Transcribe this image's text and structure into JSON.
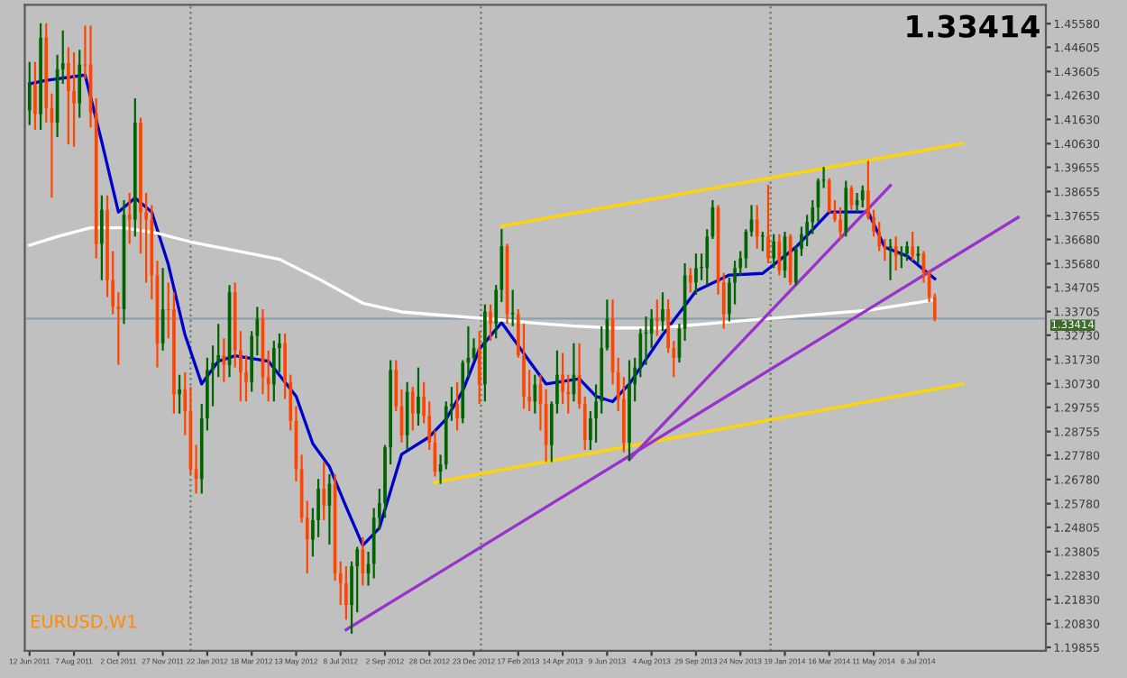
{
  "chart_data": {
    "type": "candlestick",
    "annotations": [
      "1.33414",
      "EURUSD,W1"
    ],
    "colors": [
      "#006400",
      "#ff4500",
      "#006400",
      "#ff4500",
      "#ff4500",
      "#006400",
      "#006400",
      "#ff4500",
      "#ff4500",
      "#006400",
      "#ff4500",
      "#ff4500",
      "#ff4500",
      "#006400",
      "#ff4500",
      "#ff4500",
      "#ff4500",
      "#006400",
      "#ff4500",
      "#006400",
      "#ff4500",
      "#ff4500",
      "#ff4500",
      "#ff4500",
      "#006400",
      "#ff4500",
      "#ff4500",
      "#006400",
      "#ff4500",
      "#ff4500",
      "#ff4500",
      "#006400",
      "#006400",
      "#006400",
      "#006400",
      "#ff4500",
      "#006400",
      "#ff4500",
      "#ff4500",
      "#ff4500",
      "#006400",
      "#006400",
      "#ff4500",
      "#ff4500",
      "#006400",
      "#006400",
      "#ff4500",
      "#ff4500",
      "#ff4500",
      "#ff4500",
      "#ff4500",
      "#006400",
      "#006400",
      "#ff4500",
      "#006400",
      "#ff4500",
      "#ff4500",
      "#ff4500",
      "#006400",
      "#006400",
      "#ff4500",
      "#006400",
      "#006400",
      "#006400",
      "#006400",
      "#006400",
      "#ff4500",
      "#ff4500",
      "#006400",
      "#ff4500",
      "#006400",
      "#ff4500",
      "#ff4500",
      "#ff4500",
      "#006400",
      "#006400",
      "#006400",
      "#ff4500",
      "#006400",
      "#006400",
      "#006400",
      "#ff4500",
      "#006400",
      "#ff4500",
      "#006400",
      "#006400",
      "#ff4500",
      "#006400",
      "#ff4500",
      "#ff4500",
      "#ff4500",
      "#006400",
      "#ff4500",
      "#ff4500",
      "#006400",
      "#006400",
      "#ff4500",
      "#ff4500",
      "#006400",
      "#ff4500",
      "#ff4500",
      "#006400",
      "#006400",
      "#006400",
      "#006400",
      "#ff4500",
      "#ff4500",
      "#ff4500",
      "#006400",
      "#006400",
      "#006400",
      "#006400",
      "#006400",
      "#ff4500",
      "#006400",
      "#ff4500",
      "#ff4500",
      "#006400",
      "#006400",
      "#ff4500",
      "#006400",
      "#006400",
      "#006400",
      "#006400",
      "#ff4500",
      "#ff4500",
      "#006400",
      "#006400",
      "#006400",
      "#006400",
      "#006400",
      "#ff4500",
      "#006400",
      "#ff4500",
      "#006400",
      "#ff4500",
      "#006400",
      "#ff4500",
      "#006400",
      "#006400",
      "#006400",
      "#006400",
      "#006400",
      "#006400",
      "#ff4500",
      "#ff4500",
      "#ff4500",
      "#006400",
      "#ff4500",
      "#006400",
      "#006400",
      "#ff4500",
      "#ff4500",
      "#ff4500",
      "#ff4500",
      "#006400",
      "#ff4500",
      "#006400",
      "#006400",
      "#ff4500",
      "#006400",
      "#ff4500",
      "#ff4500",
      "#ff4500"
    ],
    "x": [
      "2011-06-12",
      "2011-06-19",
      "2011-06-26",
      "2011-07-03",
      "2011-07-10",
      "2011-07-17",
      "2011-07-24",
      "2011-07-31",
      "2011-08-07",
      "2011-08-14",
      "2011-08-21",
      "2011-08-28",
      "2011-09-04",
      "2011-09-11",
      "2011-09-18",
      "2011-09-25",
      "2011-10-02",
      "2011-10-09",
      "2011-10-16",
      "2011-10-23",
      "2011-10-30",
      "2011-11-06",
      "2011-11-13",
      "2011-11-20",
      "2011-11-27",
      "2011-12-04",
      "2011-12-11",
      "2011-12-18",
      "2011-12-25",
      "2012-01-01",
      "2012-01-08",
      "2012-01-15",
      "2012-01-22",
      "2012-01-29",
      "2012-02-05",
      "2012-02-12",
      "2012-02-19",
      "2012-02-26",
      "2012-03-04",
      "2012-03-11",
      "2012-03-18",
      "2012-03-25",
      "2012-04-01",
      "2012-04-08",
      "2012-04-15",
      "2012-04-22",
      "2012-04-29",
      "2012-05-06",
      "2012-05-13",
      "2012-05-20",
      "2012-05-27",
      "2012-06-03",
      "2012-06-10",
      "2012-06-17",
      "2012-06-24",
      "2012-07-01",
      "2012-07-08",
      "2012-07-15",
      "2012-07-22",
      "2012-07-29",
      "2012-08-05",
      "2012-08-12",
      "2012-08-19",
      "2012-08-26",
      "2012-09-02",
      "2012-09-09",
      "2012-09-16",
      "2012-09-23",
      "2012-09-30",
      "2012-10-07",
      "2012-10-14",
      "2012-10-21",
      "2012-10-28",
      "2012-11-04",
      "2012-11-11",
      "2012-11-18",
      "2012-11-25",
      "2012-12-02",
      "2012-12-09",
      "2012-12-16",
      "2012-12-23",
      "2012-12-30",
      "2013-01-06",
      "2013-01-13",
      "2013-01-20",
      "2013-01-27",
      "2013-02-03",
      "2013-02-10",
      "2013-02-17",
      "2013-02-24",
      "2013-03-03",
      "2013-03-10",
      "2013-03-17",
      "2013-03-24",
      "2013-03-31",
      "2013-04-07",
      "2013-04-14",
      "2013-04-21",
      "2013-04-28",
      "2013-05-05",
      "2013-05-12",
      "2013-05-19",
      "2013-05-26",
      "2013-06-02",
      "2013-06-09",
      "2013-06-16",
      "2013-06-23",
      "2013-06-30",
      "2013-07-07",
      "2013-07-14",
      "2013-07-21",
      "2013-07-28",
      "2013-08-04",
      "2013-08-11",
      "2013-08-18",
      "2013-08-25",
      "2013-09-01",
      "2013-09-08",
      "2013-09-15",
      "2013-09-22",
      "2013-09-29",
      "2013-10-06",
      "2013-10-13",
      "2013-10-20",
      "2013-10-27",
      "2013-11-03",
      "2013-11-10",
      "2013-11-17",
      "2013-11-24",
      "2013-12-01",
      "2013-12-08",
      "2013-12-15",
      "2013-12-22",
      "2013-12-29",
      "2014-01-05",
      "2014-01-12",
      "2014-01-19",
      "2014-01-26",
      "2014-02-02",
      "2014-02-09",
      "2014-02-16",
      "2014-02-23",
      "2014-03-02",
      "2014-03-09",
      "2014-03-16",
      "2014-03-23",
      "2014-03-30",
      "2014-04-06",
      "2014-04-13",
      "2014-04-20",
      "2014-04-27",
      "2014-05-04",
      "2014-05-11",
      "2014-05-18",
      "2014-05-25",
      "2014-06-01",
      "2014-06-08",
      "2014-06-15",
      "2014-06-22",
      "2014-06-29",
      "2014-07-06",
      "2014-07-13",
      "2014-07-20",
      "2014-07-27"
    ],
    "ohlc": [
      [
        1.42,
        1.44,
        1.414,
        1.431
      ],
      [
        1.431,
        1.44,
        1.412,
        1.4185
      ],
      [
        1.4185,
        1.456,
        1.412,
        1.45
      ],
      [
        1.45,
        1.456,
        1.415,
        1.421
      ],
      [
        1.421,
        1.427,
        1.384,
        1.415
      ],
      [
        1.415,
        1.443,
        1.409,
        1.437
      ],
      [
        1.437,
        1.453,
        1.431,
        1.4395
      ],
      [
        1.4395,
        1.446,
        1.406,
        1.428
      ],
      [
        1.428,
        1.444,
        1.405,
        1.423
      ],
      [
        1.423,
        1.445,
        1.417,
        1.439
      ],
      [
        1.439,
        1.455,
        1.433,
        1.4385
      ],
      [
        1.439,
        1.455,
        1.413,
        1.419
      ],
      [
        1.419,
        1.425,
        1.359,
        1.365
      ],
      [
        1.365,
        1.385,
        1.35,
        1.379
      ],
      [
        1.379,
        1.385,
        1.343,
        1.35
      ],
      [
        1.35,
        1.362,
        1.336,
        1.339
      ],
      [
        1.339,
        1.345,
        1.315,
        1.338
      ],
      [
        1.338,
        1.383,
        1.332,
        1.377
      ],
      [
        1.377,
        1.386,
        1.365,
        1.375
      ],
      [
        1.375,
        1.425,
        1.368,
        1.415
      ],
      [
        1.415,
        1.417,
        1.361,
        1.378
      ],
      [
        1.378,
        1.386,
        1.349,
        1.375
      ],
      [
        1.375,
        1.381,
        1.342,
        1.352
      ],
      [
        1.352,
        1.358,
        1.314,
        1.324
      ],
      [
        1.324,
        1.355,
        1.321,
        1.338
      ],
      [
        1.338,
        1.349,
        1.326,
        1.3375
      ],
      [
        1.338,
        1.345,
        1.295,
        1.303
      ],
      [
        1.303,
        1.311,
        1.295,
        1.305
      ],
      [
        1.305,
        1.312,
        1.286,
        1.296
      ],
      [
        1.296,
        1.306,
        1.27,
        1.272
      ],
      [
        1.272,
        1.282,
        1.262,
        1.268
      ],
      [
        1.268,
        1.299,
        1.262,
        1.293
      ],
      [
        1.293,
        1.318,
        1.288,
        1.313
      ],
      [
        1.313,
        1.323,
        1.298,
        1.316
      ],
      [
        1.316,
        1.332,
        1.31,
        1.319
      ],
      [
        1.319,
        1.326,
        1.308,
        1.315
      ],
      [
        1.315,
        1.348,
        1.31,
        1.345
      ],
      [
        1.345,
        1.349,
        1.314,
        1.321
      ],
      [
        1.321,
        1.329,
        1.3,
        1.312
      ],
      [
        1.312,
        1.319,
        1.3,
        1.308
      ],
      [
        1.308,
        1.329,
        1.304,
        1.327
      ],
      [
        1.327,
        1.339,
        1.319,
        1.334
      ],
      [
        1.334,
        1.338,
        1.303,
        1.31
      ],
      [
        1.31,
        1.321,
        1.3,
        1.307
      ],
      [
        1.307,
        1.325,
        1.3,
        1.322
      ],
      [
        1.322,
        1.328,
        1.312,
        1.324
      ],
      [
        1.324,
        1.328,
        1.301,
        1.308
      ],
      [
        1.308,
        1.311,
        1.288,
        1.292
      ],
      [
        1.292,
        1.298,
        1.267,
        1.272
      ],
      [
        1.272,
        1.278,
        1.25,
        1.252
      ],
      [
        1.252,
        1.259,
        1.229,
        1.243
      ],
      [
        1.243,
        1.256,
        1.236,
        1.251
      ],
      [
        1.251,
        1.268,
        1.244,
        1.264
      ],
      [
        1.264,
        1.275,
        1.251,
        1.257
      ],
      [
        1.257,
        1.27,
        1.241,
        1.266
      ],
      [
        1.266,
        1.27,
        1.226,
        1.229
      ],
      [
        1.229,
        1.234,
        1.216,
        1.225
      ],
      [
        1.225,
        1.232,
        1.21,
        1.216
      ],
      [
        1.216,
        1.234,
        1.2042,
        1.232
      ],
      [
        1.232,
        1.24,
        1.213,
        1.239
      ],
      [
        1.239,
        1.244,
        1.224,
        1.229
      ],
      [
        1.229,
        1.238,
        1.224,
        1.233
      ],
      [
        1.233,
        1.256,
        1.227,
        1.252
      ],
      [
        1.252,
        1.264,
        1.247,
        1.258
      ],
      [
        1.258,
        1.282,
        1.252,
        1.281
      ],
      [
        1.281,
        1.317,
        1.274,
        1.313
      ],
      [
        1.313,
        1.317,
        1.296,
        1.298
      ],
      [
        1.298,
        1.305,
        1.283,
        1.286
      ],
      [
        1.286,
        1.308,
        1.28,
        1.304
      ],
      [
        1.304,
        1.306,
        1.288,
        1.295
      ],
      [
        1.295,
        1.314,
        1.29,
        1.302
      ],
      [
        1.302,
        1.308,
        1.291,
        1.294
      ],
      [
        1.294,
        1.3,
        1.28,
        1.283
      ],
      [
        1.283,
        1.288,
        1.269,
        1.271
      ],
      [
        1.271,
        1.278,
        1.266,
        1.274
      ],
      [
        1.274,
        1.3,
        1.272,
        1.298
      ],
      [
        1.298,
        1.306,
        1.292,
        1.299
      ],
      [
        1.299,
        1.308,
        1.288,
        1.293
      ],
      [
        1.293,
        1.317,
        1.291,
        1.316
      ],
      [
        1.316,
        1.331,
        1.31,
        1.318
      ],
      [
        1.318,
        1.326,
        1.317,
        1.322
      ],
      [
        1.322,
        1.329,
        1.299,
        1.307
      ],
      [
        1.307,
        1.34,
        1.3,
        1.337
      ],
      [
        1.337,
        1.34,
        1.325,
        1.332
      ],
      [
        1.332,
        1.348,
        1.326,
        1.346
      ],
      [
        1.346,
        1.3711,
        1.341,
        1.364
      ],
      [
        1.364,
        1.365,
        1.332,
        1.336
      ],
      [
        1.336,
        1.346,
        1.331,
        1.3365
      ],
      [
        1.336,
        1.338,
        1.318,
        1.319
      ],
      [
        1.319,
        1.332,
        1.297,
        1.302
      ],
      [
        1.302,
        1.313,
        1.296,
        1.3
      ],
      [
        1.3,
        1.311,
        1.295,
        1.307
      ],
      [
        1.307,
        1.311,
        1.288,
        1.299
      ],
      [
        1.299,
        1.305,
        1.275,
        1.282
      ],
      [
        1.282,
        1.3,
        1.275,
        1.299
      ],
      [
        1.299,
        1.321,
        1.295,
        1.311
      ],
      [
        1.311,
        1.32,
        1.299,
        1.304
      ],
      [
        1.304,
        1.311,
        1.295,
        1.303
      ],
      [
        1.303,
        1.324,
        1.3,
        1.311
      ],
      [
        1.311,
        1.324,
        1.297,
        1.299
      ],
      [
        1.299,
        1.302,
        1.28,
        1.284
      ],
      [
        1.284,
        1.296,
        1.28,
        1.293
      ],
      [
        1.293,
        1.307,
        1.283,
        1.3
      ],
      [
        1.3,
        1.331,
        1.295,
        1.322
      ],
      [
        1.322,
        1.342,
        1.321,
        1.334
      ],
      [
        1.334,
        1.342,
        1.307,
        1.312
      ],
      [
        1.312,
        1.318,
        1.296,
        1.301
      ],
      [
        1.301,
        1.31,
        1.279,
        1.283
      ],
      [
        1.283,
        1.317,
        1.2755,
        1.307
      ],
      [
        1.307,
        1.318,
        1.3,
        1.314
      ],
      [
        1.314,
        1.33,
        1.31,
        1.328
      ],
      [
        1.328,
        1.335,
        1.315,
        1.3285
      ],
      [
        1.328,
        1.338,
        1.322,
        1.334
      ],
      [
        1.334,
        1.342,
        1.327,
        1.333
      ],
      [
        1.333,
        1.345,
        1.329,
        1.338
      ],
      [
        1.338,
        1.342,
        1.32,
        1.322
      ],
      [
        1.322,
        1.325,
        1.31,
        1.318
      ],
      [
        1.318,
        1.332,
        1.316,
        1.33
      ],
      [
        1.33,
        1.357,
        1.325,
        1.352
      ],
      [
        1.352,
        1.355,
        1.345,
        1.349
      ],
      [
        1.349,
        1.361,
        1.344,
        1.355
      ],
      [
        1.355,
        1.361,
        1.35,
        1.3555
      ],
      [
        1.355,
        1.371,
        1.348,
        1.368
      ],
      [
        1.368,
        1.383,
        1.367,
        1.38
      ],
      [
        1.38,
        1.381,
        1.344,
        1.349
      ],
      [
        1.349,
        1.353,
        1.33,
        1.336
      ],
      [
        1.336,
        1.351,
        1.333,
        1.349
      ],
      [
        1.349,
        1.358,
        1.34,
        1.355
      ],
      [
        1.355,
        1.362,
        1.352,
        1.359
      ],
      [
        1.359,
        1.371,
        1.355,
        1.37
      ],
      [
        1.37,
        1.381,
        1.368,
        1.375
      ],
      [
        1.375,
        1.381,
        1.363,
        1.368
      ],
      [
        1.368,
        1.37,
        1.362,
        1.3685
      ],
      [
        1.368,
        1.3893,
        1.357,
        1.359
      ],
      [
        1.359,
        1.369,
        1.355,
        1.366
      ],
      [
        1.366,
        1.369,
        1.352,
        1.354
      ],
      [
        1.354,
        1.37,
        1.351,
        1.368
      ],
      [
        1.368,
        1.369,
        1.348,
        1.349
      ],
      [
        1.349,
        1.364,
        1.348,
        1.363
      ],
      [
        1.363,
        1.372,
        1.36,
        1.369
      ],
      [
        1.369,
        1.377,
        1.364,
        1.374
      ],
      [
        1.374,
        1.383,
        1.369,
        1.38
      ],
      [
        1.38,
        1.392,
        1.374,
        1.391
      ],
      [
        1.391,
        1.3967,
        1.388,
        1.3915
      ],
      [
        1.391,
        1.392,
        1.378,
        1.378
      ],
      [
        1.378,
        1.383,
        1.374,
        1.375
      ],
      [
        1.375,
        1.38,
        1.367,
        1.37
      ],
      [
        1.37,
        1.391,
        1.368,
        1.388
      ],
      [
        1.388,
        1.389,
        1.379,
        1.381
      ],
      [
        1.381,
        1.386,
        1.378,
        1.383
      ],
      [
        1.383,
        1.389,
        1.38,
        1.387
      ],
      [
        1.387,
        1.3993,
        1.375,
        1.376
      ],
      [
        1.376,
        1.379,
        1.368,
        1.37
      ],
      [
        1.37,
        1.374,
        1.362,
        1.364
      ],
      [
        1.364,
        1.367,
        1.358,
        1.363
      ],
      [
        1.363,
        1.367,
        1.35,
        1.364
      ],
      [
        1.364,
        1.368,
        1.354,
        1.36
      ],
      [
        1.36,
        1.364,
        1.355,
        1.361
      ],
      [
        1.361,
        1.366,
        1.358,
        1.364
      ],
      [
        1.364,
        1.37,
        1.358,
        1.36
      ],
      [
        1.36,
        1.364,
        1.357,
        1.361
      ],
      [
        1.361,
        1.362,
        1.349,
        1.353
      ],
      [
        1.353,
        1.354,
        1.341,
        1.343
      ],
      [
        1.343,
        1.3445,
        1.333,
        1.33414
      ]
    ],
    "series": [
      {
        "type": "line",
        "color": "#0000cd",
        "x": [
          "2011-06-12",
          "2011-07-03",
          "2011-08-21",
          "2011-09-11",
          "2011-10-02",
          "2011-10-23",
          "2011-11-13",
          "2011-12-04",
          "2011-12-25",
          "2012-01-15",
          "2012-02-05",
          "2012-02-26",
          "2012-04-08",
          "2012-05-13",
          "2012-06-03",
          "2012-06-24",
          "2012-07-15",
          "2012-08-05",
          "2012-08-26",
          "2012-09-23",
          "2012-10-28",
          "2012-11-18",
          "2012-12-09",
          "2012-12-30",
          "2013-01-27",
          "2013-03-03",
          "2013-03-24",
          "2013-05-05",
          "2013-05-26",
          "2013-06-16",
          "2013-07-07",
          "2013-08-18",
          "2013-09-29",
          "2013-11-10",
          "2013-12-22",
          "2014-02-02",
          "2014-03-16",
          "2014-05-04",
          "2014-05-25",
          "2014-06-22",
          "2014-07-27"
        ],
        "values": [
          1.431,
          1.4324,
          1.4346,
          1.4071,
          1.3781,
          1.3839,
          1.3781,
          1.3564,
          1.3274,
          1.3072,
          1.3166,
          1.3188,
          1.3166,
          1.3021,
          1.2826,
          1.2731,
          1.2565,
          1.2406,
          1.2478,
          1.2782,
          1.2854,
          1.2927,
          1.3043,
          1.3216,
          1.3325,
          1.3166,
          1.3072,
          1.3093,
          1.3021,
          1.2999,
          1.3072,
          1.3274,
          1.3455,
          1.3521,
          1.3528,
          1.3636,
          1.3781,
          1.3781,
          1.3636,
          1.36,
          1.3506
        ]
      },
      {
        "type": "line",
        "color": "#ffffff",
        "x": [
          "2011-06-12",
          "2011-07-17",
          "2011-08-28",
          "2011-10-09",
          "2011-11-20",
          "2012-01-01",
          "2012-02-26",
          "2012-04-22",
          "2012-06-10",
          "2012-08-05",
          "2012-09-23",
          "2012-11-18",
          "2013-01-13",
          "2013-03-03",
          "2013-04-28",
          "2013-06-16",
          "2013-08-11",
          "2013-10-06",
          "2013-11-24",
          "2014-01-19",
          "2014-03-09",
          "2014-05-04",
          "2014-06-15",
          "2014-07-27"
        ],
        "values": [
          1.3644,
          1.368,
          1.3716,
          1.3716,
          1.3694,
          1.3658,
          1.3622,
          1.3586,
          1.3506,
          1.3405,
          1.3369,
          1.3354,
          1.334,
          1.3325,
          1.3311,
          1.3303,
          1.3303,
          1.3318,
          1.3332,
          1.3347,
          1.3361,
          1.3376,
          1.3397,
          1.3419
        ]
      },
      {
        "type": "line",
        "color": "#ffd700",
        "x": [
          "2013-01-27",
          "2014-08-31"
        ],
        "values": [
          1.3723,
          1.4064
        ]
      },
      {
        "type": "line",
        "color": "#ffd700",
        "x": [
          "2012-11-04",
          "2014-08-31"
        ],
        "values": [
          1.2666,
          1.3072
        ]
      },
      {
        "type": "line",
        "color": "#9932cc",
        "x": [
          "2012-07-15",
          "2014-11-09"
        ],
        "values": [
          1.2058,
          1.3759
        ]
      },
      {
        "type": "line",
        "color": "#9932cc",
        "x": [
          "2013-07-07",
          "2014-06-01"
        ],
        "values": [
          1.276,
          1.389
        ]
      }
    ],
    "ref_lines": [
      {
        "axis": "y",
        "value": 1.33414,
        "label": "1.33414",
        "color": "#8fa0ad",
        "line_style": "solid"
      },
      {
        "axis": "x",
        "value": "2012-01-01",
        "color": "#6b7a5a",
        "line_style": "dotted"
      },
      {
        "axis": "x",
        "value": "2013-01-01",
        "color": "#6b7a5a",
        "line_style": "dotted"
      },
      {
        "axis": "x",
        "value": "2014-01-01",
        "color": "#6b7a5a",
        "line_style": "dotted"
      }
    ],
    "xlim": [
      "2011-06-06",
      "2014-12-14"
    ],
    "xticks": [
      {
        "value": "2011-06-12",
        "label": "12 Jun 2011"
      },
      {
        "value": "2011-08-07",
        "label": "7 Aug 2011"
      },
      {
        "value": "2011-10-02",
        "label": "2 Oct 2011"
      },
      {
        "value": "2011-11-27",
        "label": "27 Nov 2011"
      },
      {
        "value": "2012-01-22",
        "label": "22 Jan 2012"
      },
      {
        "value": "2012-03-18",
        "label": "18 Mar 2012"
      },
      {
        "value": "2012-05-13",
        "label": "13 May 2012"
      },
      {
        "value": "2012-07-08",
        "label": "8 Jul 2012"
      },
      {
        "value": "2012-09-02",
        "label": "2 Sep 2012"
      },
      {
        "value": "2012-10-28",
        "label": "28 Oct 2012"
      },
      {
        "value": "2012-12-23",
        "label": "23 Dec 2012"
      },
      {
        "value": "2013-02-17",
        "label": "17 Feb 2013"
      },
      {
        "value": "2013-04-14",
        "label": "14 Apr 2013"
      },
      {
        "value": "2013-06-09",
        "label": "9 Jun 2013"
      },
      {
        "value": "2013-08-04",
        "label": "4 Aug 2013"
      },
      {
        "value": "2013-09-29",
        "label": "29 Sep 2013"
      },
      {
        "value": "2013-11-24",
        "label": "24 Nov 2013"
      },
      {
        "value": "2014-01-19",
        "label": "19 Jan 2014"
      },
      {
        "value": "2014-03-16",
        "label": "16 Mar 2014"
      },
      {
        "value": "2014-05-11",
        "label": "11 May 2014"
      },
      {
        "value": "2014-07-06",
        "label": "6 Jul 2014"
      }
    ],
    "ylim": [
      1.1971,
      1.4636
    ],
    "yticks": [
      {
        "value": 1.4558,
        "label": "1.45580"
      },
      {
        "value": 1.44605,
        "label": "1.44605"
      },
      {
        "value": 1.43605,
        "label": "1.43605"
      },
      {
        "value": 1.4263,
        "label": "1.42630"
      },
      {
        "value": 1.4163,
        "label": "1.41630"
      },
      {
        "value": 1.4063,
        "label": "1.40630"
      },
      {
        "value": 1.39655,
        "label": "1.39655"
      },
      {
        "value": 1.38655,
        "label": "1.38655"
      },
      {
        "value": 1.37655,
        "label": "1.37655"
      },
      {
        "value": 1.3668,
        "label": "1.36680"
      },
      {
        "value": 1.3568,
        "label": "1.35680"
      },
      {
        "value": 1.34705,
        "label": "1.34705"
      },
      {
        "value": 1.33705,
        "label": "1.33705"
      },
      {
        "value": 1.3273,
        "label": "1.32730"
      },
      {
        "value": 1.3173,
        "label": "1.31730"
      },
      {
        "value": 1.3073,
        "label": "1.30730"
      },
      {
        "value": 1.29755,
        "label": "1.29755"
      },
      {
        "value": 1.28755,
        "label": "1.28755"
      },
      {
        "value": 1.2778,
        "label": "1.27780"
      },
      {
        "value": 1.2678,
        "label": "1.26780"
      },
      {
        "value": 1.2578,
        "label": "1.25780"
      },
      {
        "value": 1.24805,
        "label": "1.24805"
      },
      {
        "value": 1.23805,
        "label": "1.23805"
      },
      {
        "value": 1.2283,
        "label": "1.22830"
      },
      {
        "value": 1.2183,
        "label": "1.21830"
      },
      {
        "value": 1.2083,
        "label": "1.20830"
      },
      {
        "value": 1.19855,
        "label": "1.19855"
      }
    ],
    "grid": false,
    "legend": false
  }
}
